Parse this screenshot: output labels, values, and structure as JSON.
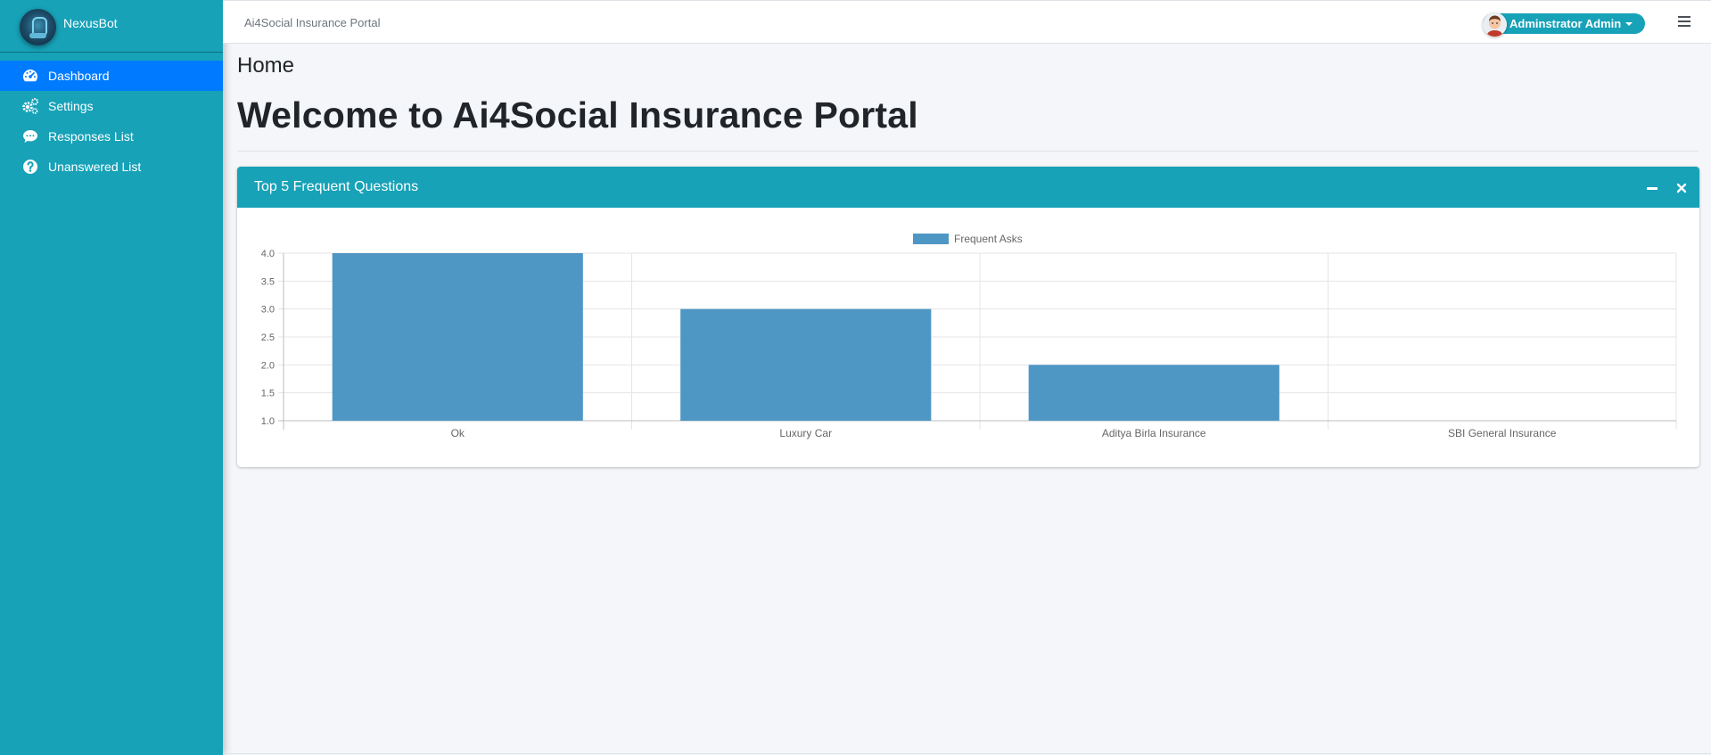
{
  "sidebar": {
    "brand": "NexusBot",
    "items": [
      {
        "label": "Dashboard",
        "icon": "tachometer-icon",
        "active": true
      },
      {
        "label": "Settings",
        "icon": "gears-icon",
        "active": false
      },
      {
        "label": "Responses List",
        "icon": "comment-icon",
        "active": false
      },
      {
        "label": "Unanswered List",
        "icon": "question-circle-icon",
        "active": false
      }
    ]
  },
  "topbar": {
    "title": "Ai4Social Insurance Portal",
    "user": "Adminstrator Admin"
  },
  "content": {
    "breadcrumb": "Home",
    "heading": "Welcome to Ai4Social Insurance Portal"
  },
  "card": {
    "title": "Top 5 Frequent Questions"
  },
  "colors": {
    "sidebar": "#17a2b8",
    "active_nav": "#007bff",
    "bar": "#4e97c4"
  },
  "chart_data": {
    "type": "bar",
    "categories": [
      "Ok",
      "Luxury Car",
      "Aditya Birla Insurance",
      "SBI General Insurance"
    ],
    "series": [
      {
        "name": "Frequent Asks",
        "values": [
          4,
          3,
          2,
          1
        ]
      }
    ],
    "ylim": [
      1.0,
      4.0
    ],
    "yticks": [
      "1.0",
      "1.5",
      "2.0",
      "2.5",
      "3.0",
      "3.5",
      "4.0"
    ],
    "legend": "top",
    "grid": true
  }
}
